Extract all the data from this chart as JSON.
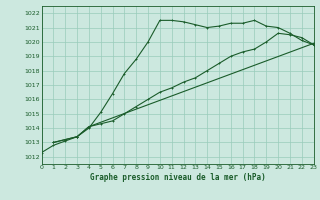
{
  "title": "Graphe pression niveau de la mer (hPa)",
  "bg_color": "#cce8df",
  "grid_color": "#99ccbb",
  "line_color": "#1a5c2a",
  "xlim": [
    0,
    23
  ],
  "ylim": [
    1011.5,
    1022.5
  ],
  "xticks": [
    0,
    1,
    2,
    3,
    4,
    5,
    6,
    7,
    8,
    9,
    10,
    11,
    12,
    13,
    14,
    15,
    16,
    17,
    18,
    19,
    20,
    21,
    22,
    23
  ],
  "yticks": [
    1012,
    1013,
    1014,
    1015,
    1016,
    1017,
    1018,
    1019,
    1020,
    1021,
    1022
  ],
  "series1": {
    "x": [
      0,
      1,
      2,
      3,
      4,
      5,
      6,
      7,
      8,
      9,
      10,
      11,
      12,
      13,
      14,
      15,
      16,
      17,
      18,
      19,
      20,
      21,
      22,
      23
    ],
    "y": [
      1012.3,
      1012.8,
      1013.1,
      1013.4,
      1014.0,
      1015.1,
      1016.4,
      1017.8,
      1018.8,
      1020.0,
      1021.5,
      1021.5,
      1021.4,
      1021.2,
      1021.0,
      1021.1,
      1021.3,
      1021.3,
      1021.5,
      1021.1,
      1021.0,
      1020.6,
      1020.1,
      1019.8
    ]
  },
  "series2": {
    "x": [
      1,
      2,
      3,
      4,
      5,
      6,
      7,
      8,
      9,
      10,
      11,
      12,
      13,
      14,
      15,
      16,
      17,
      18,
      19,
      20,
      21,
      22,
      23
    ],
    "y": [
      1013.0,
      1013.2,
      1013.4,
      1014.1,
      1014.3,
      1014.5,
      1015.0,
      1015.5,
      1016.0,
      1016.5,
      1016.8,
      1017.2,
      1017.5,
      1018.0,
      1018.5,
      1019.0,
      1019.3,
      1019.5,
      1020.0,
      1020.6,
      1020.5,
      1020.3,
      1019.8
    ]
  },
  "series3": {
    "x": [
      1,
      2,
      3,
      4,
      23
    ],
    "y": [
      1013.0,
      1013.2,
      1013.4,
      1014.1,
      1019.9
    ]
  }
}
